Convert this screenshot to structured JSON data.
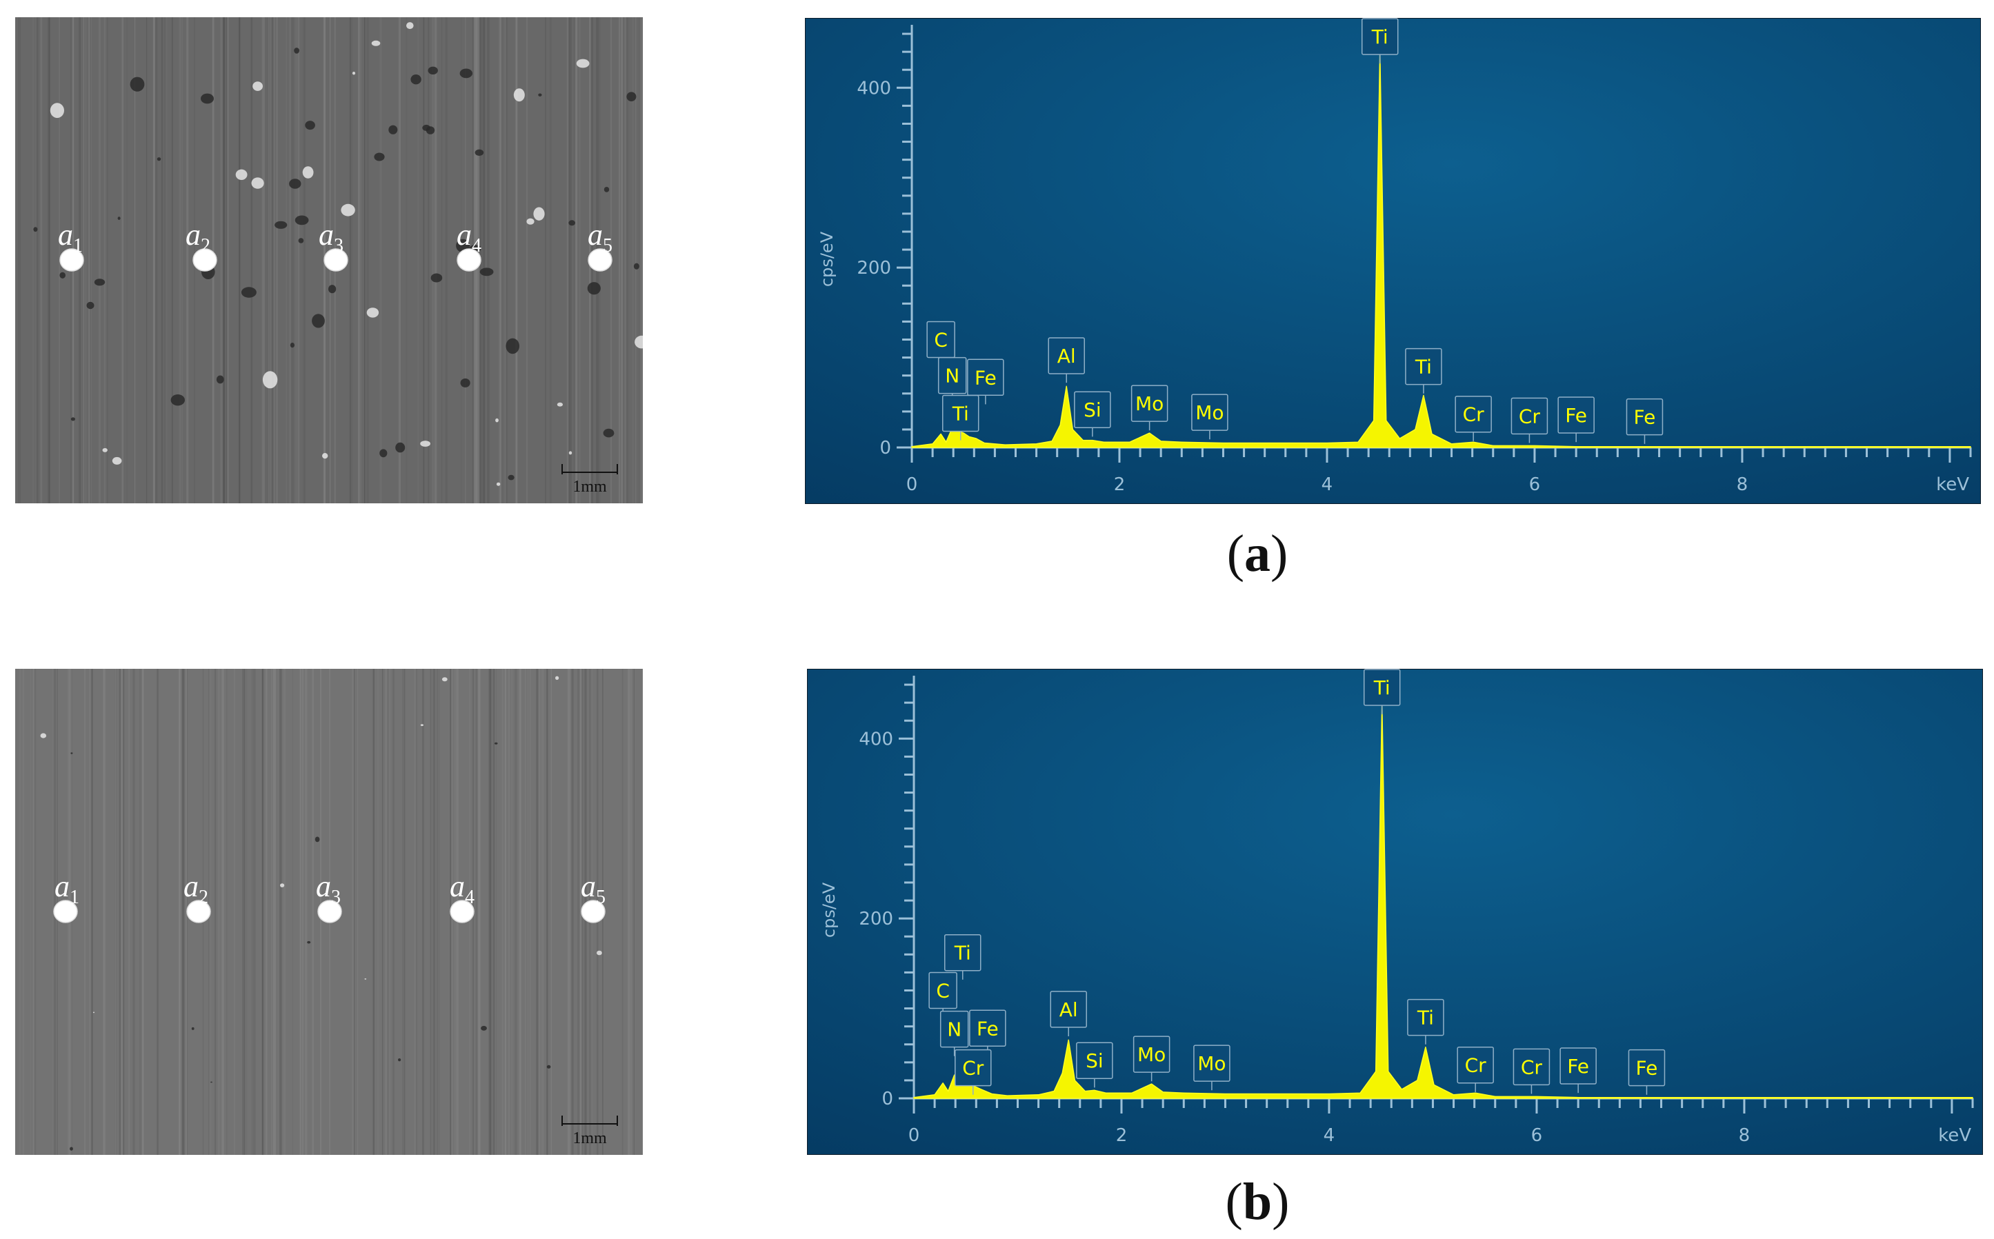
{
  "panels": [
    {
      "caption": {
        "open": "(",
        "letter": "a",
        "close": ")"
      },
      "sem": {
        "points": [
          "a1",
          "a2",
          "a3",
          "a4",
          "a5"
        ],
        "scale_label": "1mm"
      },
      "chart_data": {
        "type": "line",
        "xlabel": "keV",
        "ylabel": "cps/eV",
        "xlim": [
          0,
          10.2
        ],
        "ylim": [
          0,
          470
        ],
        "x_ticks": [
          0,
          2,
          4,
          6,
          8
        ],
        "y_ticks": [
          0,
          200,
          400
        ],
        "series": [
          {
            "x": [
              0,
              0.2,
              0.28,
              0.33,
              0.39,
              0.45,
              0.5,
              0.55,
              0.62,
              0.7,
              0.9,
              1.2,
              1.35,
              1.43,
              1.49,
              1.55,
              1.65,
              1.74,
              1.85,
              2.1,
              2.29,
              2.4,
              2.6,
              3,
              3.5,
              4,
              4.3,
              4.45,
              4.51,
              4.57,
              4.7,
              4.85,
              4.93,
              5.01,
              5.2,
              5.41,
              5.6,
              6,
              6.4,
              7,
              8,
              9,
              10.2
            ],
            "y": [
              1,
              4,
              15,
              6,
              22,
              18,
              16,
              12,
              10,
              5,
              3,
              4,
              7,
              25,
              68,
              20,
              8,
              8,
              6,
              6,
              16,
              7,
              6,
              5,
              5,
              5,
              6,
              30,
              440,
              30,
              10,
              20,
              58,
              15,
              4,
              6,
              2,
              2,
              1,
              1,
              1,
              1,
              1
            ]
          }
        ],
        "peak_labels": [
          {
            "text": "C",
            "x": 0.28,
            "label_y": 120
          },
          {
            "text": "N",
            "x": 0.39,
            "label_y": 80
          },
          {
            "text": "Ti",
            "x": 0.47,
            "label_y": 38
          },
          {
            "text": "Fe",
            "x": 0.71,
            "label_y": 78
          },
          {
            "text": "Al",
            "x": 1.49,
            "label_y": 102
          },
          {
            "text": "Si",
            "x": 1.74,
            "label_y": 42
          },
          {
            "text": "Mo",
            "x": 2.29,
            "label_y": 49
          },
          {
            "text": "Mo",
            "x": 2.87,
            "label_y": 39
          },
          {
            "text": "Ti",
            "x": 4.51,
            "label_y": 457
          },
          {
            "text": "Ti",
            "x": 4.93,
            "label_y": 90
          },
          {
            "text": "Cr",
            "x": 5.41,
            "label_y": 37
          },
          {
            "text": "Cr",
            "x": 5.95,
            "label_y": 35
          },
          {
            "text": "Fe",
            "x": 6.4,
            "label_y": 36
          },
          {
            "text": "Fe",
            "x": 7.06,
            "label_y": 34
          }
        ]
      }
    },
    {
      "caption": {
        "open": "(",
        "letter": "b",
        "close": ")"
      },
      "sem": {
        "points": [
          "a1",
          "a2",
          "a3",
          "a4",
          "a5"
        ],
        "scale_label": "1mm"
      },
      "chart_data": {
        "type": "line",
        "xlabel": "keV",
        "ylabel": "cps/eV",
        "xlim": [
          0,
          10.2
        ],
        "ylim": [
          0,
          470
        ],
        "x_ticks": [
          0,
          2,
          4,
          6,
          8
        ],
        "y_ticks": [
          0,
          200,
          400
        ],
        "series": [
          {
            "x": [
              0,
              0.2,
              0.28,
              0.33,
              0.39,
              0.45,
              0.5,
              0.57,
              0.65,
              0.75,
              0.9,
              1.2,
              1.35,
              1.43,
              1.49,
              1.55,
              1.65,
              1.74,
              1.85,
              2.1,
              2.29,
              2.4,
              2.6,
              3,
              3.5,
              4,
              4.3,
              4.45,
              4.51,
              4.57,
              4.7,
              4.85,
              4.93,
              5.01,
              5.2,
              5.41,
              5.6,
              6,
              6.4,
              7,
              8,
              9,
              10.2
            ],
            "y": [
              1,
              4,
              17,
              8,
              26,
              20,
              18,
              14,
              10,
              5,
              3,
              4,
              8,
              28,
              65,
              20,
              8,
              9,
              6,
              6,
              16,
              7,
              6,
              5,
              5,
              5,
              6,
              30,
              440,
              30,
              10,
              20,
              57,
              15,
              4,
              6,
              2,
              2,
              1,
              1,
              1,
              1,
              1
            ]
          }
        ],
        "peak_labels": [
          {
            "text": "Ti",
            "x": 0.47,
            "label_y": 162
          },
          {
            "text": "C",
            "x": 0.28,
            "label_y": 120
          },
          {
            "text": "N",
            "x": 0.39,
            "label_y": 77
          },
          {
            "text": "Fe",
            "x": 0.71,
            "label_y": 78
          },
          {
            "text": "Cr",
            "x": 0.57,
            "label_y": 34
          },
          {
            "text": "Al",
            "x": 1.49,
            "label_y": 99
          },
          {
            "text": "Si",
            "x": 1.74,
            "label_y": 42
          },
          {
            "text": "Mo",
            "x": 2.29,
            "label_y": 49
          },
          {
            "text": "Mo",
            "x": 2.87,
            "label_y": 39
          },
          {
            "text": "Ti",
            "x": 4.51,
            "label_y": 457
          },
          {
            "text": "Ti",
            "x": 4.93,
            "label_y": 90
          },
          {
            "text": "Cr",
            "x": 5.41,
            "label_y": 37
          },
          {
            "text": "Cr",
            "x": 5.95,
            "label_y": 35
          },
          {
            "text": "Fe",
            "x": 6.4,
            "label_y": 36
          },
          {
            "text": "Fe",
            "x": 7.06,
            "label_y": 34
          }
        ]
      }
    }
  ]
}
